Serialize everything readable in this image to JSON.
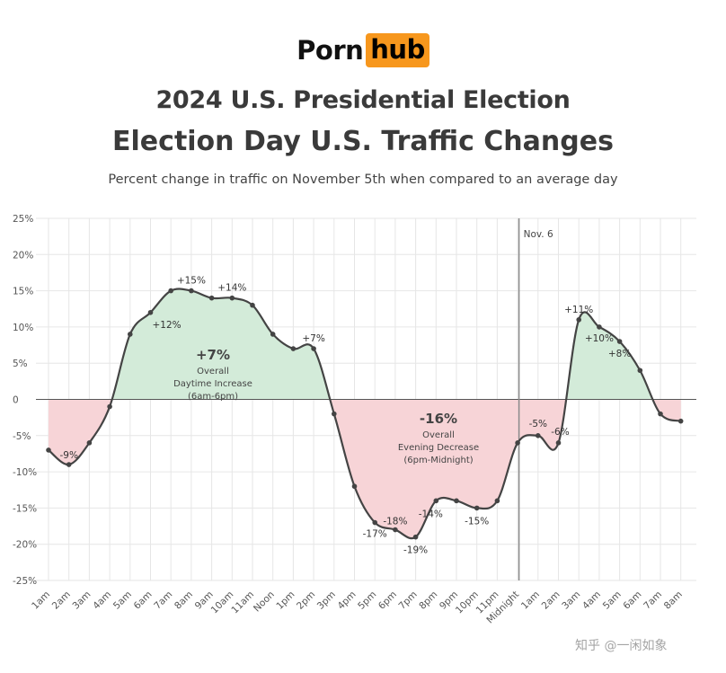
{
  "logo": {
    "part1": "Porn",
    "part2": "hub"
  },
  "title": "2024 U.S. Presidential Election",
  "subtitle_main": "Election Day U.S. Traffic Changes",
  "description": "Percent change in traffic on November 5th when compared to an average day",
  "watermark": "知乎 @一闲如象",
  "colors": {
    "line": "#444444",
    "positive_fill": "#d3ebd9",
    "negative_fill": "#f7d4d7",
    "grid": "#e6e6e6",
    "logo_accent": "#f7971d"
  },
  "chart_data": {
    "type": "area",
    "title": "Election Day U.S. Traffic Changes",
    "x": [
      "1am",
      "2am",
      "3am",
      "4am",
      "5am",
      "6am",
      "7am",
      "8am",
      "9am",
      "10am",
      "11am",
      "Noon",
      "1pm",
      "2pm",
      "3pm",
      "4pm",
      "5pm",
      "6pm",
      "7pm",
      "8pm",
      "9pm",
      "10pm",
      "11pm",
      "Midnight",
      "1am",
      "2am",
      "3am",
      "4am",
      "5am",
      "6am",
      "7am",
      "8am"
    ],
    "series": [
      {
        "values": [
          -7,
          -9,
          -6,
          -1,
          9,
          12,
          15,
          15,
          14,
          14,
          13,
          9,
          7,
          7,
          -2,
          -12,
          -17,
          -18,
          -19,
          -14,
          -14,
          -15,
          -14,
          -6,
          -5,
          -6,
          11,
          10,
          8,
          4,
          -2,
          -3
        ]
      }
    ],
    "ylim": [
      -25,
      25
    ],
    "y_ticks": [
      "25%",
      "20%",
      "15%",
      "10%",
      "5%",
      "0",
      "-5%",
      "-10%",
      "-15%",
      "-20%",
      "-25%"
    ],
    "grid": true,
    "point_labels": [
      {
        "index": 1,
        "text": "-9%"
      },
      {
        "index": 5,
        "text": "+12%"
      },
      {
        "index": 7,
        "text": "+15%"
      },
      {
        "index": 9,
        "text": "+14%"
      },
      {
        "index": 13,
        "text": "+7%"
      },
      {
        "index": 16,
        "text": "-17%"
      },
      {
        "index": 17,
        "text": "-18%"
      },
      {
        "index": 18,
        "text": "-19%"
      },
      {
        "index": 19,
        "text": "-14%"
      },
      {
        "index": 21,
        "text": "-15%"
      },
      {
        "index": 24,
        "text": "-5%"
      },
      {
        "index": 25,
        "text": "-6%"
      },
      {
        "index": 26,
        "text": "+11%"
      },
      {
        "index": 27,
        "text": "+10%"
      },
      {
        "index": 28,
        "text": "+8%"
      }
    ],
    "divider": {
      "after_label": "Midnight",
      "text": "Nov. 6"
    },
    "annotations": [
      {
        "value": "+7%",
        "line1": "Overall",
        "line2": "Daytime Increase",
        "line3": "(6am-6pm)"
      },
      {
        "value": "-16%",
        "line1": "Overall",
        "line2": "Evening Decrease",
        "line3": "(6pm-Midnight)"
      }
    ]
  }
}
